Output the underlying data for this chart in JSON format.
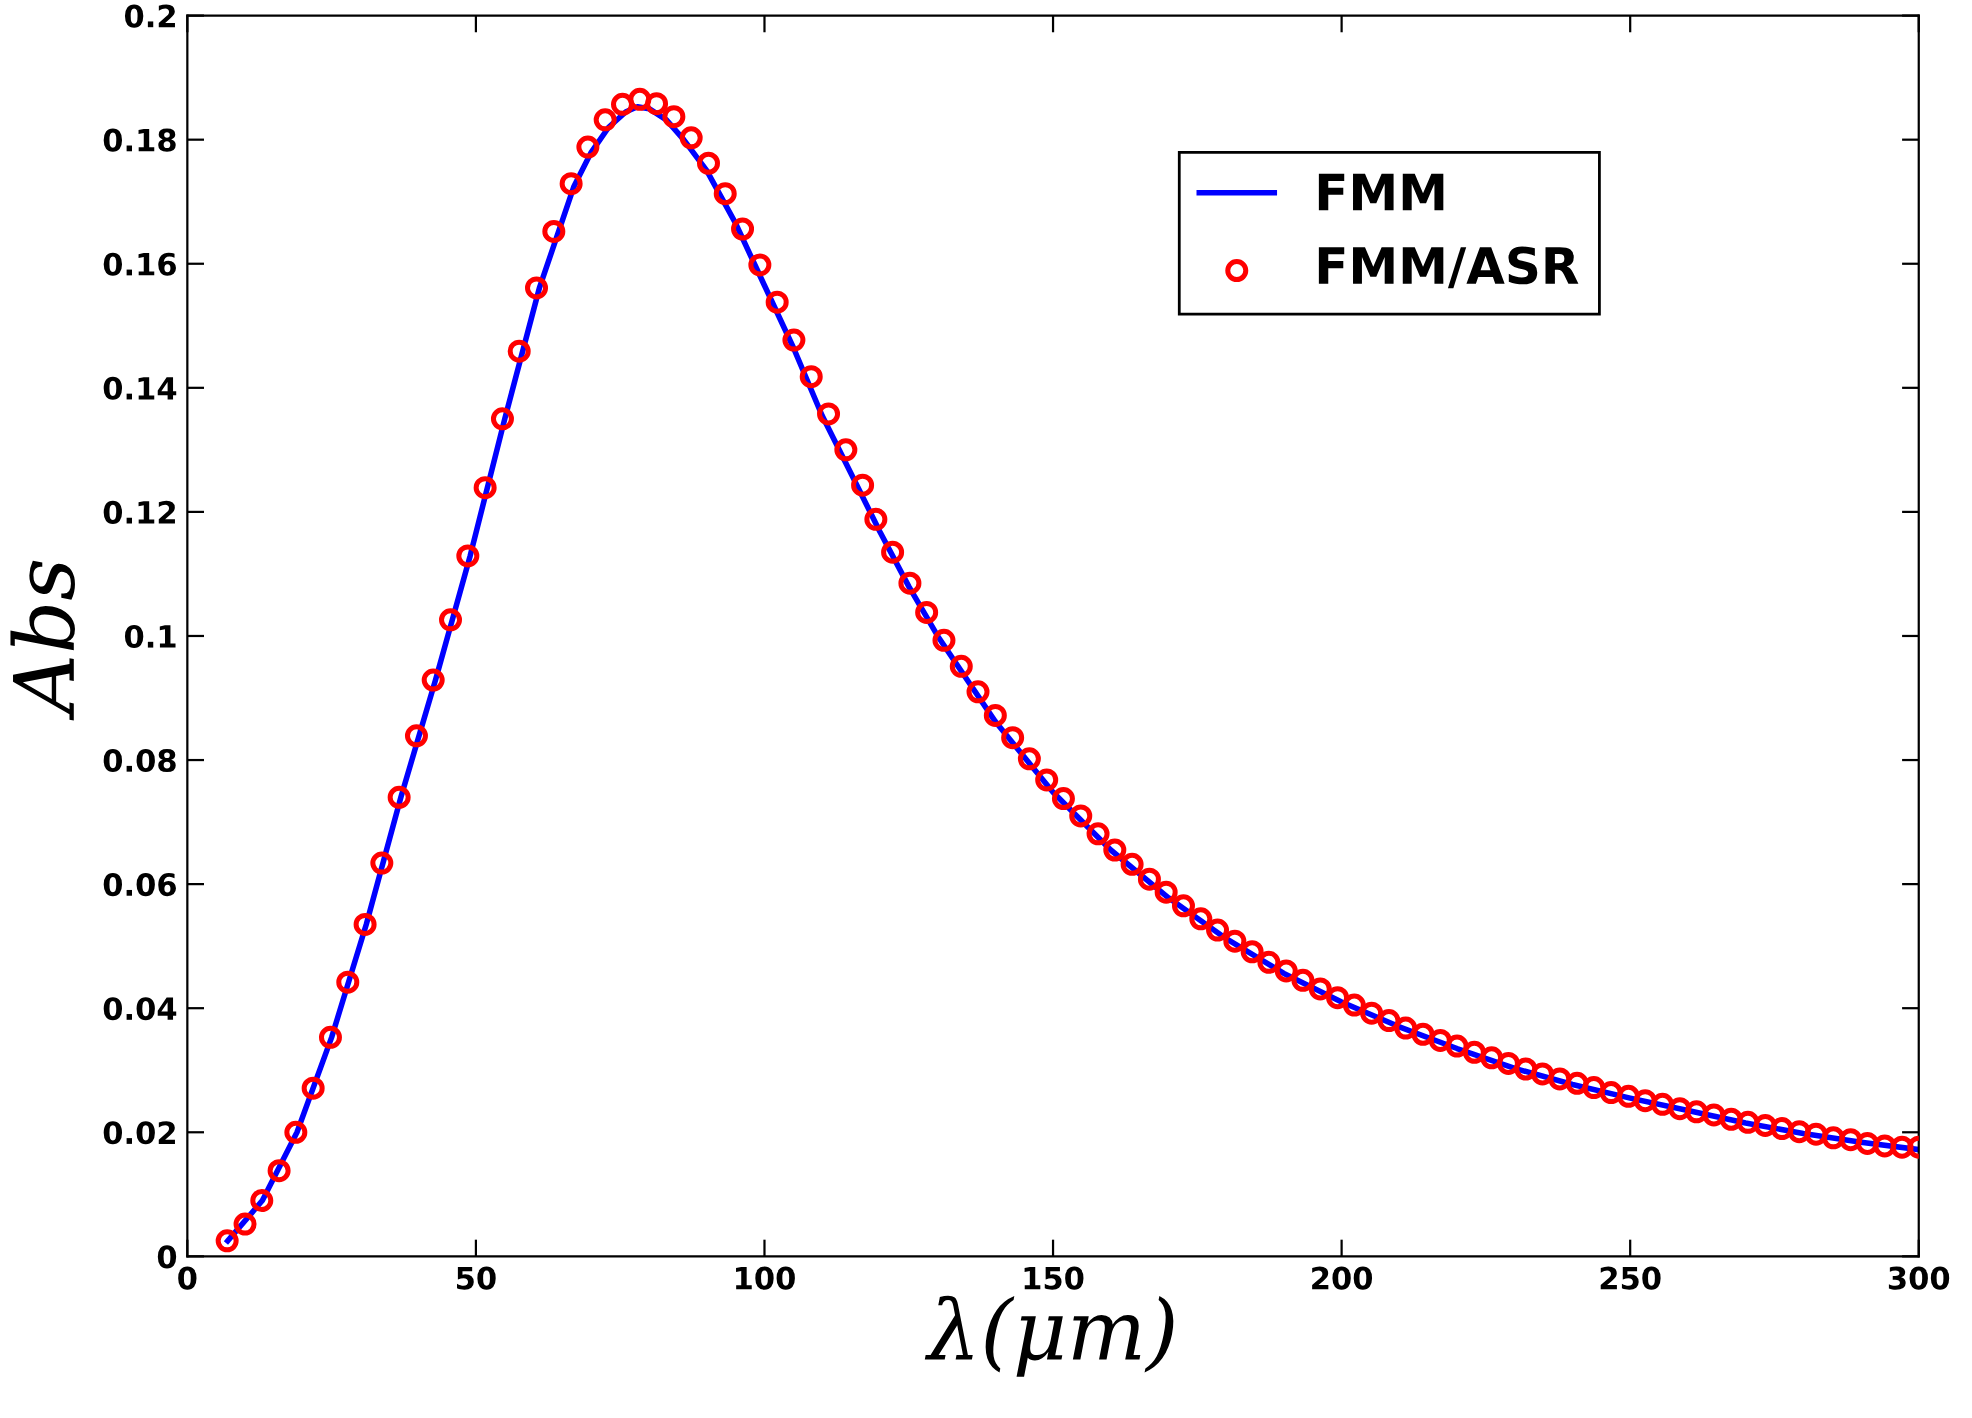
{
  "chart_data": {
    "type": "line",
    "xlabel": "λ(μm)",
    "ylabel": "Abs",
    "xlim": [
      0,
      300
    ],
    "ylim": [
      0,
      0.2
    ],
    "xticks": [
      0,
      50,
      100,
      150,
      200,
      250,
      300
    ],
    "yticks": [
      0,
      0.02,
      0.04,
      0.06,
      0.08,
      0.1,
      0.12,
      0.14,
      0.16,
      0.18,
      0.2
    ],
    "grid": false,
    "legend": "top right",
    "series": [
      {
        "name": "FMM",
        "color": "#0000ff",
        "marker": "none",
        "line_style": "solid",
        "x": [
          7,
          13,
          19,
          25,
          31,
          37,
          43,
          49,
          55,
          61,
          67,
          70,
          73,
          76,
          78,
          80,
          83,
          86,
          90,
          95,
          100,
          105,
          110,
          115,
          120,
          125,
          130,
          140,
          150,
          160,
          170,
          180,
          190,
          200,
          210,
          220,
          230,
          240,
          250,
          260,
          270,
          280,
          290,
          300
        ],
        "values": [
          0.0025,
          0.009,
          0.02,
          0.0353,
          0.0535,
          0.074,
          0.0929,
          0.1129,
          0.135,
          0.1561,
          0.1725,
          0.178,
          0.182,
          0.1845,
          0.1853,
          0.185,
          0.1832,
          0.18,
          0.175,
          0.1665,
          0.1565,
          0.1465,
          0.1355,
          0.1262,
          0.1168,
          0.108,
          0.1,
          0.0862,
          0.0748,
          0.0655,
          0.0578,
          0.0512,
          0.0456,
          0.041,
          0.037,
          0.0335,
          0.0303,
          0.0277,
          0.0255,
          0.0235,
          0.0215,
          0.0198,
          0.0184,
          0.0172
        ]
      },
      {
        "name": "FMM/ASR",
        "type": "scatter",
        "color": "#ff0000",
        "marker": "circle",
        "x": [
          6.9,
          10,
          12.9,
          15.9,
          18.8,
          21.8,
          24.8,
          27.8,
          30.8,
          33.7,
          36.7,
          39.7,
          42.6,
          45.6,
          48.6,
          51.6,
          54.6,
          57.5,
          60.5,
          63.5,
          66.5,
          69.4,
          72.4,
          75.4,
          78.4,
          81.3,
          84.3,
          87.3,
          90.3,
          93.2,
          96.2,
          99.2,
          102.2,
          105.1,
          108.1,
          111.1,
          114.1,
          117,
          119.3,
          122.2,
          125.2,
          128.1,
          131.1,
          134.1,
          137,
          140,
          143,
          145.9,
          148.9,
          151.8,
          154.8,
          157.8,
          160.7,
          163.7,
          166.7,
          169.6,
          172.6,
          175.6,
          178.5,
          181.5,
          184.5,
          187.4,
          190.4,
          193.3,
          196.3,
          199.3,
          202.2,
          205.2,
          208.2,
          211.1,
          214.1,
          217.1,
          220,
          223,
          226,
          228.9,
          231.9,
          234.8,
          237.8,
          240.8,
          243.7,
          246.7,
          249.7,
          252.6,
          255.6,
          258.6,
          261.5,
          264.5,
          267.5,
          270.4,
          273.4,
          276.3,
          279.3,
          282.2,
          285.2,
          288.2,
          291.1,
          294.1,
          297.1,
          300
        ],
        "values": [
          0.0025,
          0.0052,
          0.009,
          0.0138,
          0.02,
          0.0271,
          0.0353,
          0.0442,
          0.0535,
          0.0634,
          0.074,
          0.0839,
          0.0929,
          0.1026,
          0.1129,
          0.1239,
          0.135,
          0.1459,
          0.1561,
          0.1652,
          0.1729,
          0.1788,
          0.1832,
          0.1857,
          0.1865,
          0.1858,
          0.1837,
          0.1803,
          0.1762,
          0.1713,
          0.1656,
          0.1598,
          0.1538,
          0.1477,
          0.1418,
          0.1358,
          0.13,
          0.1243,
          0.1188,
          0.1135,
          0.1085,
          0.1038,
          0.0993,
          0.0951,
          0.091,
          0.0872,
          0.0836,
          0.0802,
          0.0768,
          0.0738,
          0.071,
          0.0681,
          0.0655,
          0.0632,
          0.0608,
          0.0587,
          0.0565,
          0.0544,
          0.0526,
          0.0508,
          0.0491,
          0.0474,
          0.046,
          0.0445,
          0.0431,
          0.0417,
          0.0405,
          0.0392,
          0.038,
          0.0368,
          0.0358,
          0.0348,
          0.0339,
          0.0329,
          0.032,
          0.0311,
          0.0302,
          0.0294,
          0.0286,
          0.0279,
          0.0272,
          0.0264,
          0.0258,
          0.0251,
          0.0245,
          0.0238,
          0.0233,
          0.0228,
          0.0221,
          0.0216,
          0.0211,
          0.0206,
          0.0201,
          0.0197,
          0.0191,
          0.0188,
          0.0182,
          0.0178,
          0.0176,
          0.0176
        ]
      }
    ]
  }
}
